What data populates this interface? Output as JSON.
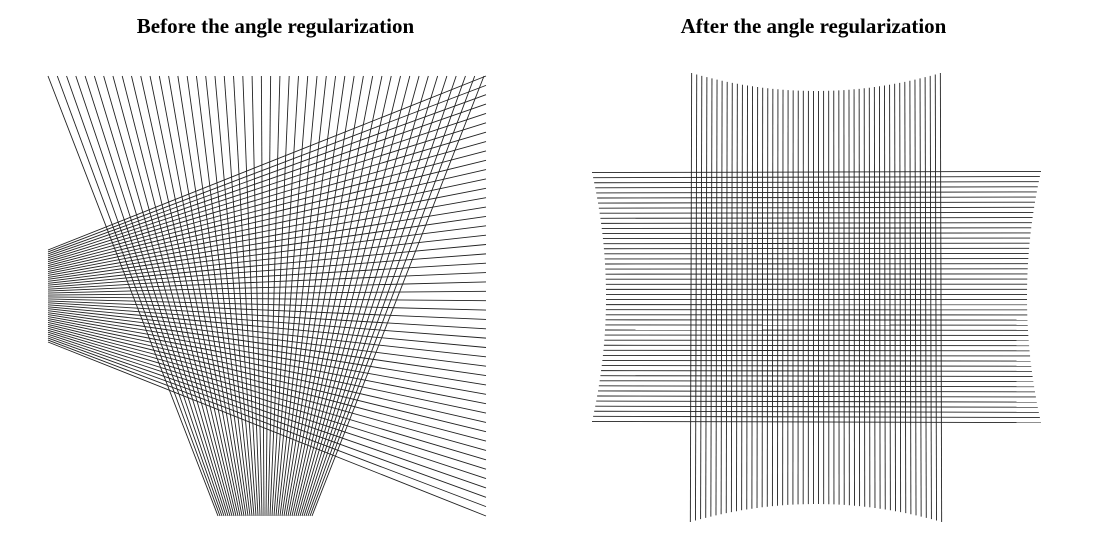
{
  "figure": {
    "panels": [
      {
        "id": "before",
        "title": "Before the angle regularization",
        "line_color": "#222222"
      },
      {
        "id": "after",
        "title": "After the angle regularization",
        "line_color": "#222222"
      }
    ]
  }
}
